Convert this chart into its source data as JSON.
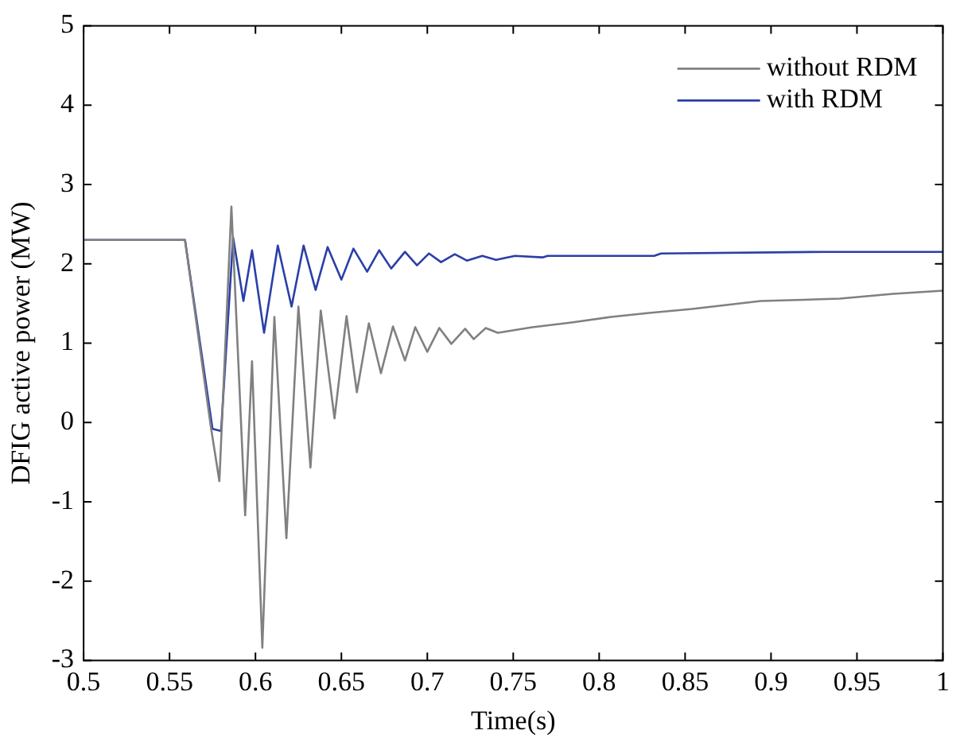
{
  "chart_data": {
    "type": "line",
    "xlabel": "Time(s)",
    "ylabel": "DFIG active power (MW)",
    "xlim": [
      0.5,
      1
    ],
    "xticks": [
      0.5,
      0.55,
      0.6,
      0.65,
      0.7,
      0.75,
      0.8,
      0.85,
      0.9,
      0.95,
      1
    ],
    "ylim": [
      -3,
      5
    ],
    "yticks": [
      -3,
      -2,
      -1,
      0,
      1,
      2,
      3,
      4,
      5
    ],
    "grid": false,
    "legend": "top right",
    "marker": "none",
    "line_style": "solid",
    "series": [
      {
        "name": "without RDM",
        "color": "#808080",
        "x": [
          0.5,
          0.559,
          0.574,
          0.579,
          0.586,
          0.594,
          0.598,
          0.604,
          0.611,
          0.618,
          0.625,
          0.632,
          0.638,
          0.646,
          0.653,
          0.659,
          0.666,
          0.673,
          0.68,
          0.687,
          0.693,
          0.7,
          0.707,
          0.714,
          0.722,
          0.727,
          0.734,
          0.741,
          0.761,
          0.784,
          0.807,
          0.829,
          0.854,
          0.894,
          0.94,
          0.971,
          1
        ],
        "values": [
          2.3,
          2.3,
          -0.05,
          -0.74,
          2.72,
          -1.17,
          0.77,
          -2.84,
          1.33,
          -1.46,
          1.46,
          -0.57,
          1.41,
          0.05,
          1.34,
          0.38,
          1.25,
          0.62,
          1.21,
          0.78,
          1.2,
          0.89,
          1.19,
          0.99,
          1.18,
          1.05,
          1.19,
          1.13,
          1.2,
          1.26,
          1.33,
          1.38,
          1.43,
          1.53,
          1.56,
          1.62,
          1.66
        ]
      },
      {
        "name": "with RDM",
        "color": "#2a3fa8",
        "x": [
          0.5,
          0.559,
          0.575,
          0.58,
          0.587,
          0.593,
          0.598,
          0.605,
          0.613,
          0.621,
          0.628,
          0.635,
          0.642,
          0.65,
          0.657,
          0.665,
          0.672,
          0.679,
          0.687,
          0.694,
          0.701,
          0.708,
          0.716,
          0.723,
          0.732,
          0.74,
          0.751,
          0.767,
          0.77,
          0.832,
          0.836,
          0.932,
          1
        ],
        "values": [
          2.3,
          2.3,
          -0.08,
          -0.11,
          2.33,
          1.53,
          2.17,
          1.13,
          2.23,
          1.46,
          2.23,
          1.67,
          2.21,
          1.8,
          2.19,
          1.9,
          2.17,
          1.94,
          2.15,
          1.98,
          2.13,
          2.02,
          2.12,
          2.04,
          2.1,
          2.05,
          2.1,
          2.08,
          2.1,
          2.1,
          2.13,
          2.15,
          2.15
        ]
      }
    ]
  }
}
